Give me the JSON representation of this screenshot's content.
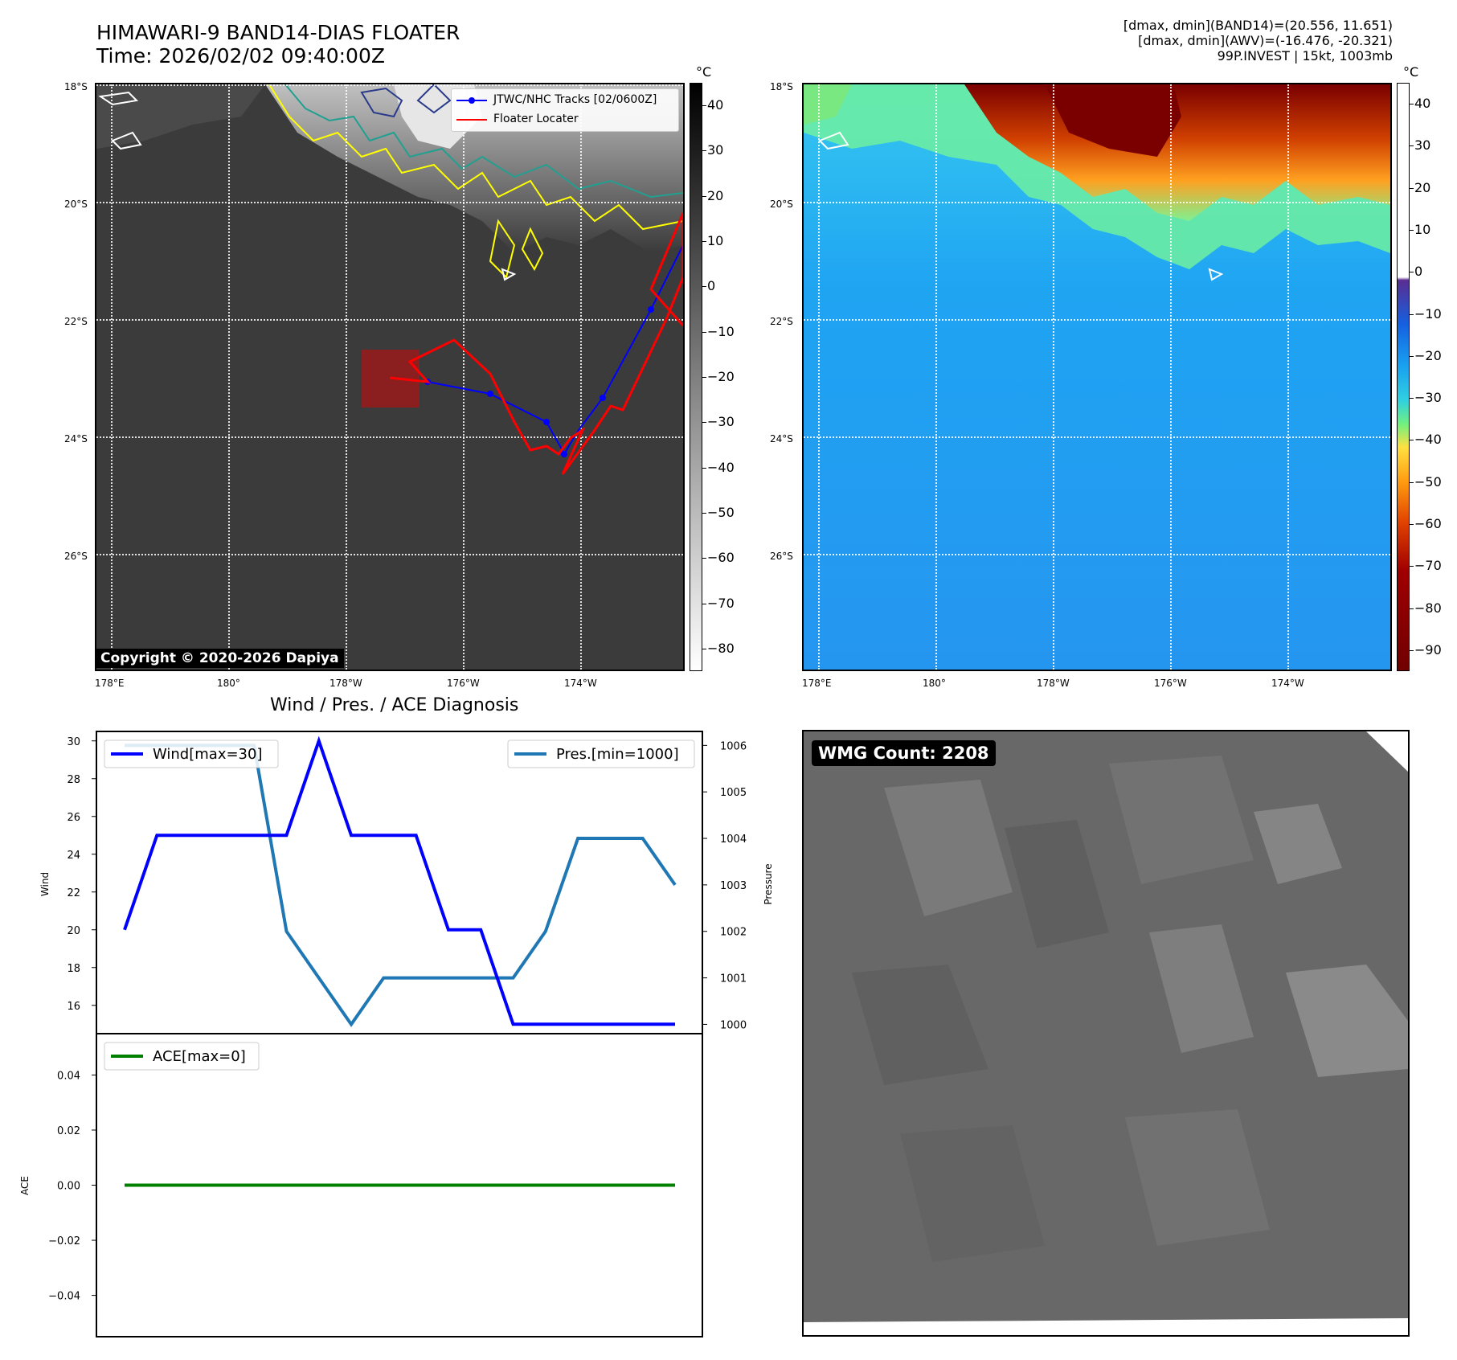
{
  "header": {
    "title_line1": "HIMAWARI-9 BAND14-DIAS FLOATER",
    "title_line2": "Time: 2026/02/02 09:40:00Z",
    "info_line1": "[dmax, dmin](BAND14)=(20.556, 11.651)",
    "info_line2": "[dmax, dmin](AWV)=(-16.476, -20.321)",
    "info_line3": "99P.INVEST | 15kt, 1003mb"
  },
  "map": {
    "lat_labels": [
      "18°S",
      "20°S",
      "22°S",
      "24°S",
      "26°S"
    ],
    "lon_labels": [
      "178°E",
      "180°",
      "178°W",
      "176°W",
      "174°W"
    ],
    "legend_track": "JTWC/NHC Tracks [02/0600Z]",
    "legend_floater": "Floater Locater",
    "copyright": "Copyright © 2020-2026 Dapiya",
    "track_color": "#0000ff",
    "floater_color": "#ff0000",
    "contour_colors": [
      "#ffff00",
      "#20a090",
      "#2a3a8a"
    ]
  },
  "colorbar1": {
    "unit": "°C",
    "ticks": [
      "40",
      "30",
      "20",
      "10",
      "0",
      "−10",
      "−20",
      "−30",
      "−40",
      "−50",
      "−60",
      "−70",
      "−80"
    ]
  },
  "colorbar2": {
    "unit": "°C",
    "ticks": [
      "40",
      "30",
      "20",
      "10",
      "0",
      "−10",
      "−20",
      "−30",
      "−40",
      "−50",
      "−60",
      "−70",
      "−80",
      "−90"
    ]
  },
  "diagnosis": {
    "title": "Wind / Pres. / ACE Diagnosis"
  },
  "wmg": {
    "label": "WMG Count: 2208"
  },
  "chart_data": [
    {
      "type": "line",
      "title": "Wind / Pres. / ACE Diagnosis",
      "ylabel": "Wind",
      "ylabel_right": "Pressure",
      "x": [
        0,
        1,
        2,
        3,
        4,
        5,
        6,
        7,
        8,
        9,
        10,
        11,
        12,
        13,
        14,
        15,
        16,
        17
      ],
      "series": [
        {
          "name": "Wind[max=30]",
          "axis": "left",
          "color": "#0000ff",
          "values": [
            20,
            25,
            25,
            25,
            25,
            25,
            30,
            25,
            25,
            25,
            20,
            20,
            15,
            15,
            15,
            15,
            15,
            15
          ]
        },
        {
          "name": "Pres.[min=1000]",
          "axis": "right",
          "color": "#1f77b4",
          "values": [
            1006,
            1006,
            1006,
            1006,
            1006,
            1002,
            1001,
            1000,
            1001,
            1001,
            1001,
            1001,
            1001,
            1002,
            1004,
            1004,
            1004,
            1003
          ]
        }
      ],
      "ylim": [
        14.5,
        30.5
      ],
      "ylim_right": [
        999.8,
        1006.3
      ],
      "yticks": [
        16,
        18,
        20,
        22,
        24,
        26,
        28,
        30
      ],
      "yticks_right": [
        1000,
        1001,
        1002,
        1003,
        1004,
        1005,
        1006
      ],
      "legend": [
        "top-left",
        "top-right"
      ]
    },
    {
      "type": "line",
      "ylabel": "ACE",
      "x": [
        0,
        1,
        2,
        3,
        4,
        5,
        6,
        7,
        8,
        9,
        10,
        11,
        12,
        13,
        14,
        15,
        16,
        17
      ],
      "series": [
        {
          "name": "ACE[max=0]",
          "color": "#008000",
          "values": [
            0,
            0,
            0,
            0,
            0,
            0,
            0,
            0,
            0,
            0,
            0,
            0,
            0,
            0,
            0,
            0,
            0,
            0
          ]
        }
      ],
      "ylim": [
        -0.055,
        0.055
      ],
      "yticks": [
        0.04,
        0.02,
        0.0,
        -0.02,
        -0.04
      ],
      "ytick_labels": [
        "0.04",
        "0.02",
        "0.00",
        "−0.02",
        "−0.04"
      ],
      "legend": "top-left"
    }
  ]
}
